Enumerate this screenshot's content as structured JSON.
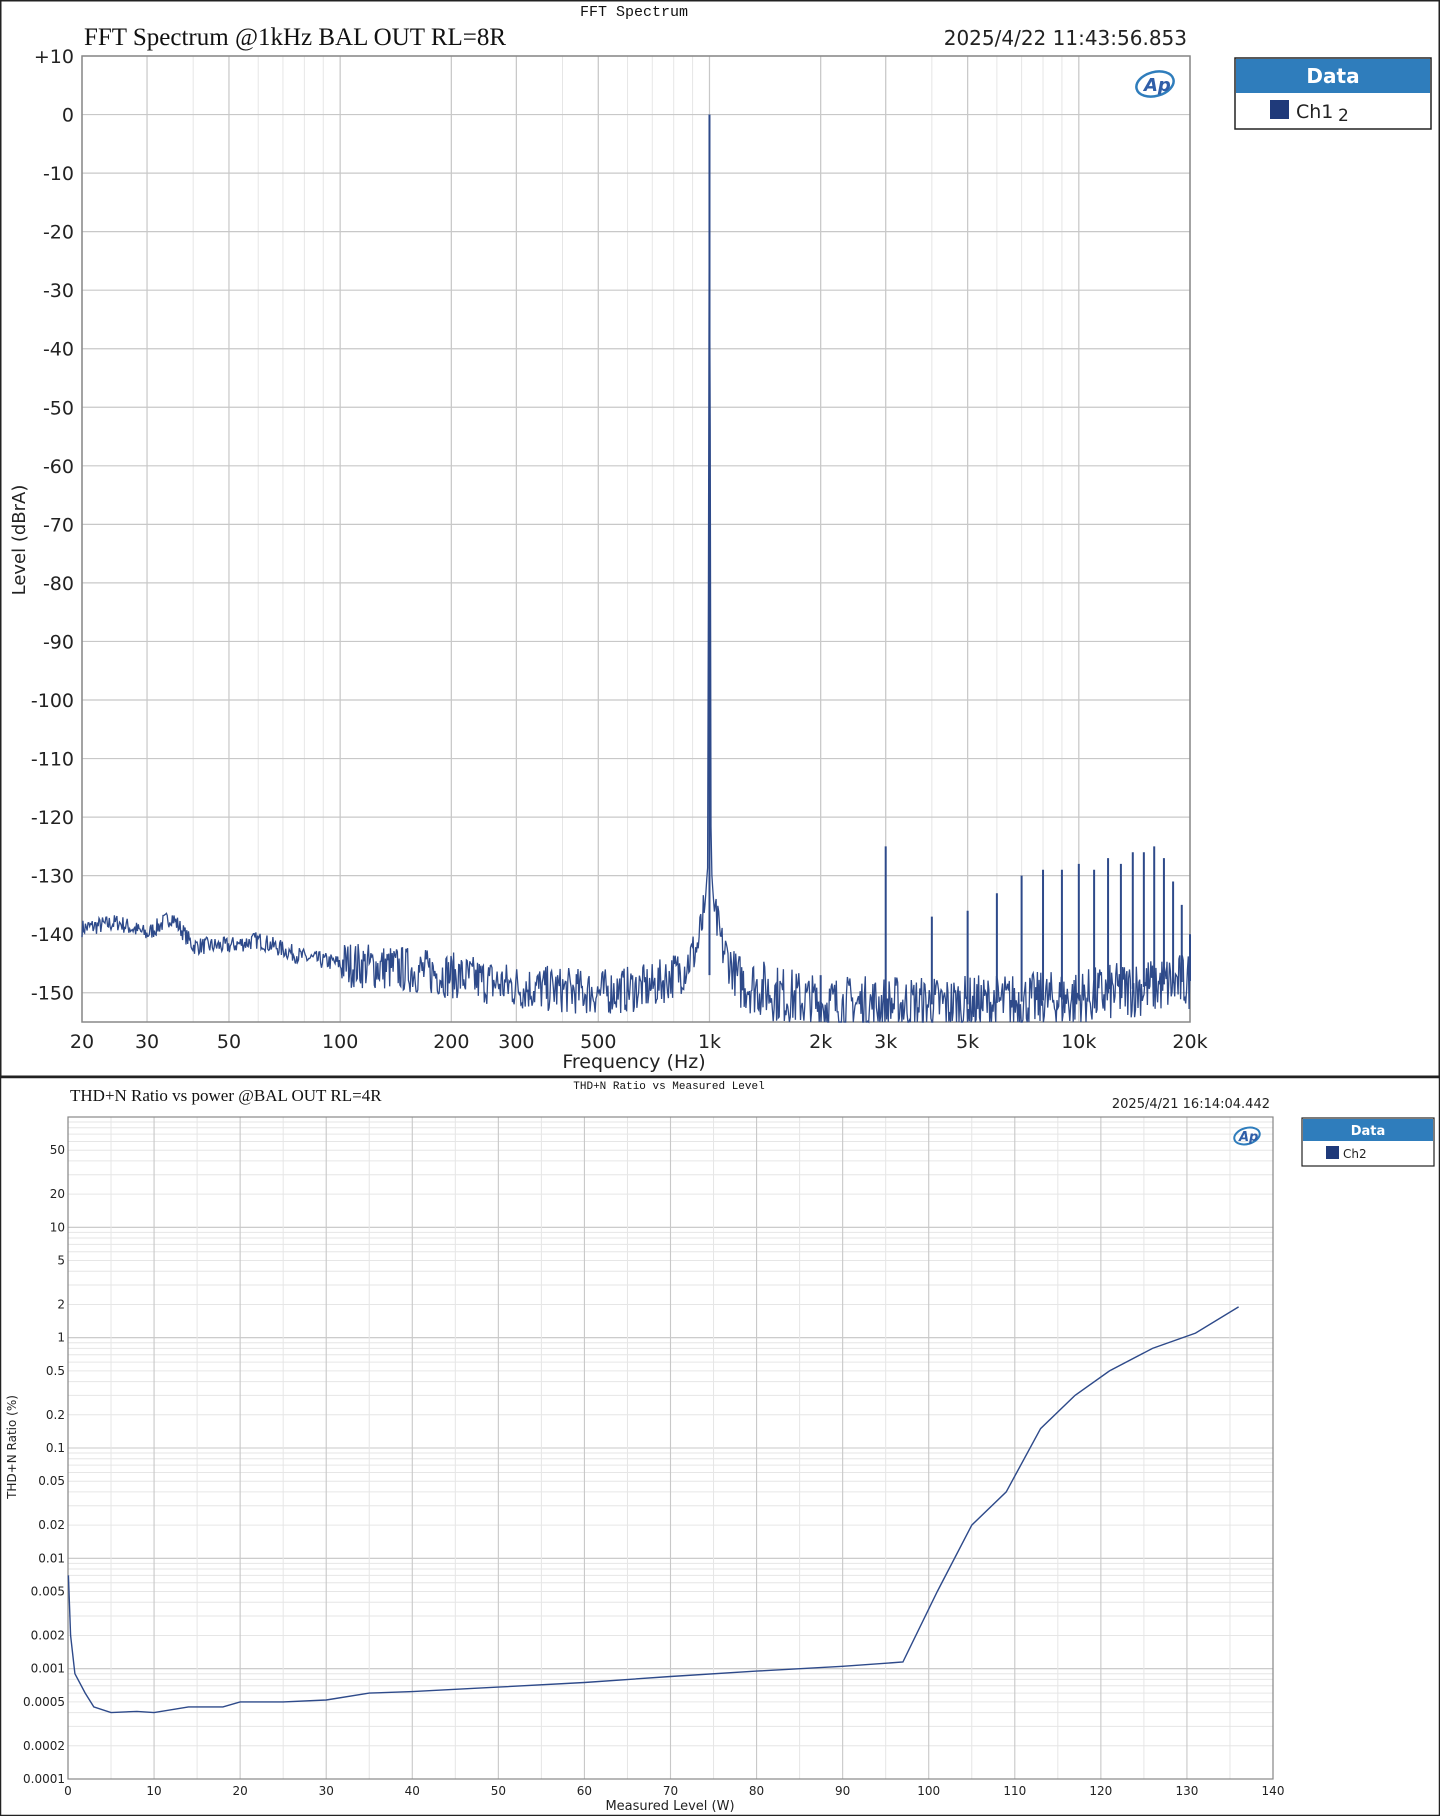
{
  "colors": {
    "trace": "#2e4a8a",
    "legend_header": "#2f7dbc",
    "legend_swatch": "#1f3a7a",
    "grid_major": "#c8c8c8",
    "grid_minor": "#e6e6e6"
  },
  "icons": {
    "logo": "ap-logo"
  },
  "chart_data": [
    {
      "type": "line",
      "window_title": "FFT Spectrum",
      "title": "FFT Spectrum @1kHz BAL OUT RL=8R",
      "timestamp": "2025/4/22 11:43:56.853",
      "xlabel": "Frequency (Hz)",
      "ylabel": "Level (dBrA)",
      "x_scale": "log",
      "xlim": [
        20,
        20000
      ],
      "ylim": [
        -155,
        10
      ],
      "x_ticks": [
        20,
        30,
        50,
        100,
        200,
        300,
        500,
        1000,
        2000,
        3000,
        5000,
        10000,
        20000
      ],
      "x_tick_labels": [
        "20",
        "30",
        "50",
        "100",
        "200",
        "300",
        "500",
        "1k",
        "2k",
        "3k",
        "5k",
        "10k",
        "20k"
      ],
      "y_ticks": [
        10,
        0,
        -10,
        -20,
        -30,
        -40,
        -50,
        -60,
        -70,
        -80,
        -90,
        -100,
        -110,
        -120,
        -130,
        -140,
        -150
      ],
      "y_tick_labels": [
        "+10",
        "0",
        "-10",
        "-20",
        "-30",
        "-40",
        "-50",
        "-60",
        "-70",
        "-80",
        "-90",
        "-100",
        "-110",
        "-120",
        "-130",
        "-140",
        "-150"
      ],
      "grid": true,
      "legend": {
        "header": "Data",
        "position": "right",
        "entries": [
          "Ch1"
        ],
        "extra_label": "2"
      },
      "series": [
        {
          "name": "Ch1",
          "noise_floor": [
            [
              20,
              -139
            ],
            [
              25,
              -138
            ],
            [
              30,
              -140
            ],
            [
              35,
              -137
            ],
            [
              40,
              -142
            ],
            [
              50,
              -142
            ],
            [
              60,
              -141
            ],
            [
              80,
              -144
            ],
            [
              100,
              -145
            ],
            [
              150,
              -146
            ],
            [
              200,
              -147
            ],
            [
              300,
              -149
            ],
            [
              500,
              -150
            ],
            [
              700,
              -149
            ],
            [
              850,
              -146
            ],
            [
              930,
              -142
            ],
            [
              970,
              -136
            ],
            [
              990,
              -128
            ],
            [
              1000,
              0
            ],
            [
              1010,
              -128
            ],
            [
              1030,
              -136
            ],
            [
              1080,
              -142
            ],
            [
              1200,
              -148
            ],
            [
              1500,
              -150
            ],
            [
              2000,
              -152
            ],
            [
              5000,
              -152
            ],
            [
              10000,
              -151
            ],
            [
              15000,
              -149
            ],
            [
              20000,
              -148
            ]
          ],
          "peaks": [
            [
              1000,
              0
            ],
            [
              2000,
              -147
            ],
            [
              3000,
              -125
            ],
            [
              4000,
              -137
            ],
            [
              5000,
              -136
            ],
            [
              6000,
              -133
            ],
            [
              7000,
              -130
            ],
            [
              8000,
              -129
            ],
            [
              9000,
              -129
            ],
            [
              10000,
              -128
            ],
            [
              11000,
              -129
            ],
            [
              12000,
              -127
            ],
            [
              13000,
              -128
            ],
            [
              14000,
              -126
            ],
            [
              15000,
              -126
            ],
            [
              16000,
              -125
            ],
            [
              17000,
              -127
            ],
            [
              18000,
              -131
            ],
            [
              19000,
              -135
            ],
            [
              20000,
              -140
            ]
          ]
        }
      ]
    },
    {
      "type": "line",
      "window_title": "THD+N Ratio vs Measured Level",
      "title": "THD+N Ratio vs power @BAL OUT RL=4R",
      "timestamp": "2025/4/21 16:14:04.442",
      "xlabel": "Measured Level (W)",
      "ylabel": "THD+N Ratio (%)",
      "y_scale": "log",
      "xlim": [
        0,
        140
      ],
      "ylim": [
        0.0001,
        100
      ],
      "x_ticks": [
        0,
        10,
        20,
        30,
        40,
        50,
        60,
        70,
        80,
        90,
        100,
        110,
        120,
        130,
        140
      ],
      "x_tick_labels": [
        "0",
        "10",
        "20",
        "30",
        "40",
        "50",
        "60",
        "70",
        "80",
        "90",
        "100",
        "110",
        "120",
        "130",
        "140"
      ],
      "y_ticks": [
        50,
        20,
        10,
        5,
        2,
        1,
        0.5,
        0.2,
        0.1,
        0.05,
        0.02,
        0.01,
        0.005,
        0.002,
        0.001,
        0.0005,
        0.0002,
        0.0001
      ],
      "y_tick_labels": [
        "50",
        "20",
        "10",
        "5",
        "2",
        "1",
        "0.5",
        "0.2",
        "0.1",
        "0.05",
        "0.02",
        "0.01",
        "0.005",
        "0.002",
        "0.001",
        "0.0005",
        "0.0002",
        "0.0001"
      ],
      "grid": true,
      "legend": {
        "header": "Data",
        "position": "right",
        "entries": [
          "Ch2"
        ]
      },
      "series": [
        {
          "name": "Ch2",
          "points": [
            [
              0.05,
              0.007
            ],
            [
              0.3,
              0.002
            ],
            [
              0.8,
              0.0009
            ],
            [
              2,
              0.0006
            ],
            [
              3,
              0.00045
            ],
            [
              5,
              0.0004
            ],
            [
              8,
              0.00041
            ],
            [
              10,
              0.0004
            ],
            [
              14,
              0.00045
            ],
            [
              18,
              0.00045
            ],
            [
              20,
              0.0005
            ],
            [
              25,
              0.0005
            ],
            [
              30,
              0.00052
            ],
            [
              35,
              0.0006
            ],
            [
              40,
              0.00062
            ],
            [
              50,
              0.00068
            ],
            [
              60,
              0.00075
            ],
            [
              70,
              0.00085
            ],
            [
              80,
              0.00095
            ],
            [
              90,
              0.00105
            ],
            [
              97,
              0.00115
            ],
            [
              101,
              0.005
            ],
            [
              105,
              0.02
            ],
            [
              109,
              0.04
            ],
            [
              113,
              0.15
            ],
            [
              117,
              0.3
            ],
            [
              121,
              0.5
            ],
            [
              126,
              0.8
            ],
            [
              131,
              1.1
            ],
            [
              136,
              1.9
            ]
          ]
        }
      ]
    }
  ]
}
